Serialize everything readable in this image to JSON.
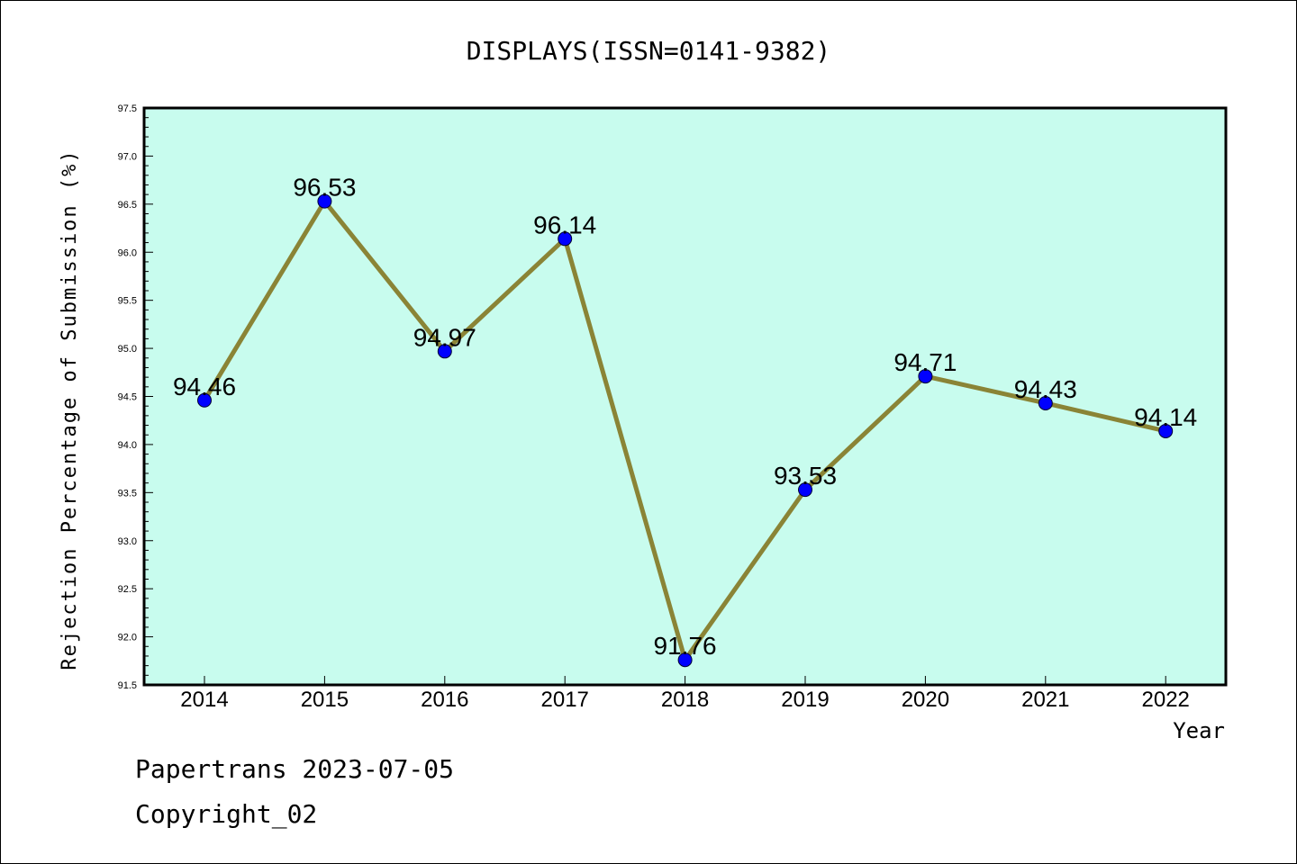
{
  "chart_data": {
    "type": "line",
    "title": "DISPLAYS(ISSN=0141-9382)",
    "xlabel": "Year",
    "ylabel": "Rejection Percentage of Submission (%)",
    "categories": [
      "2014",
      "2015",
      "2016",
      "2017",
      "2018",
      "2019",
      "2020",
      "2021",
      "2022"
    ],
    "values": [
      94.46,
      96.53,
      94.97,
      96.14,
      91.76,
      93.53,
      94.71,
      94.43,
      94.14
    ],
    "data_labels": [
      "94.46",
      "96.53",
      "94.97",
      "96.14",
      "91.76",
      "93.53",
      "94.71",
      "94.43",
      "94.14"
    ],
    "ylim": [
      91.5,
      97.5
    ],
    "yticks": [
      "91.5",
      "92.0",
      "92.5",
      "93.0",
      "93.5",
      "94.0",
      "94.5",
      "95.0",
      "95.5",
      "96.0",
      "96.5",
      "97.0",
      "97.5"
    ],
    "grid": false,
    "legend": "none",
    "colors": {
      "plot_background": "#c8fcee",
      "line": "#8a8436",
      "marker": "#0000ff"
    }
  },
  "footer": {
    "line1": "Papertrans 2023-07-05",
    "line2": "Copyright_02"
  }
}
